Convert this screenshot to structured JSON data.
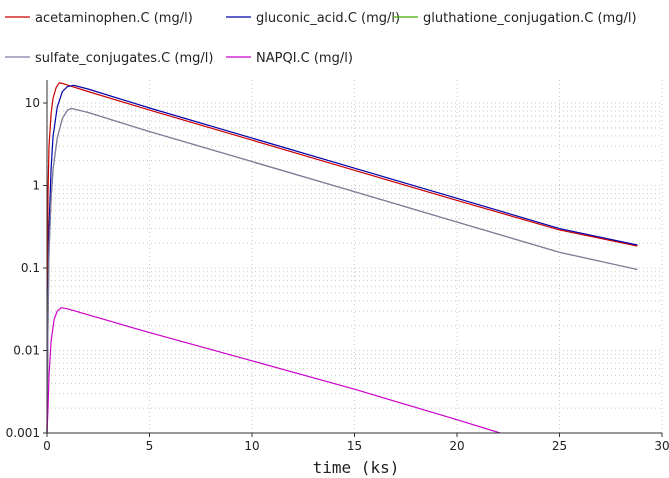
{
  "chart_data": {
    "type": "line",
    "title": "",
    "xlabel": "time (ks)",
    "ylabel": "",
    "xlim": [
      0,
      30
    ],
    "ylim": [
      0.001,
      20
    ],
    "yscale": "log",
    "grid": true,
    "legend_position": "top",
    "x_ticks": [
      0,
      5,
      10,
      15,
      20,
      25,
      30
    ],
    "x_tick_labels": [
      "0",
      "5",
      "10",
      "15",
      "20",
      "25",
      "30"
    ],
    "y_ticks": [
      0.001,
      0.01,
      0.1,
      1,
      10
    ],
    "y_tick_labels": [
      "0.001",
      "0.01",
      "0.1",
      "1",
      "10"
    ],
    "series": [
      {
        "name": "acetaminophen.C (mg/l)",
        "color": "#cc0000",
        "x": [
          0,
          0.05,
          0.1,
          0.2,
          0.3,
          0.45,
          0.6,
          0.75,
          1.0,
          2,
          5,
          10,
          15,
          20,
          25,
          28.8
        ],
        "y": [
          0.001,
          0.8,
          3.0,
          7.5,
          11.5,
          15.5,
          17.5,
          17.3,
          16.5,
          13.8,
          8.2,
          3.55,
          1.53,
          0.66,
          0.29,
          0.185
        ]
      },
      {
        "name": "gluconic_acid.C (mg/l)",
        "color": "#0000aa",
        "x": [
          0,
          0.05,
          0.1,
          0.2,
          0.3,
          0.5,
          0.75,
          1.0,
          1.3,
          2,
          5,
          10,
          15,
          20,
          25,
          28.8
        ],
        "y": [
          0.001,
          0.03,
          0.3,
          1.6,
          4.0,
          9.0,
          13.8,
          15.8,
          16.4,
          14.8,
          8.7,
          3.75,
          1.62,
          0.7,
          0.3,
          0.19
        ]
      },
      {
        "name": "gluthatione_conjugation.C (mg/l)",
        "color": "#44aa00",
        "x": [
          0,
          0.05,
          0.1,
          0.2,
          0.3,
          0.5,
          0.75,
          1.0,
          1.2,
          2,
          5,
          10,
          15,
          20,
          25,
          28.8
        ],
        "y": [
          0.001,
          0.02,
          0.15,
          0.7,
          1.6,
          3.8,
          6.5,
          8.2,
          8.6,
          7.7,
          4.5,
          1.95,
          0.84,
          0.36,
          0.155,
          0.096
        ]
      },
      {
        "name": "sulfate_conjugates.C (mg/l)",
        "color": "#8877aa",
        "x": [
          0,
          0.05,
          0.1,
          0.2,
          0.3,
          0.5,
          0.75,
          1.0,
          1.2,
          2,
          5,
          10,
          15,
          20,
          25,
          28.8
        ],
        "y": [
          0.001,
          0.02,
          0.15,
          0.7,
          1.6,
          3.8,
          6.5,
          8.2,
          8.6,
          7.7,
          4.5,
          1.95,
          0.84,
          0.36,
          0.155,
          0.096
        ]
      },
      {
        "name": "NAPQI.C (mg/l)",
        "color": "#cc00cc",
        "x": [
          0,
          0.05,
          0.1,
          0.2,
          0.35,
          0.5,
          0.7,
          1,
          3,
          5,
          10,
          15,
          20,
          22.1
        ],
        "y": [
          0.001,
          0.002,
          0.005,
          0.013,
          0.024,
          0.03,
          0.033,
          0.032,
          0.023,
          0.0165,
          0.0075,
          0.0034,
          0.00145,
          0.001
        ]
      }
    ]
  }
}
